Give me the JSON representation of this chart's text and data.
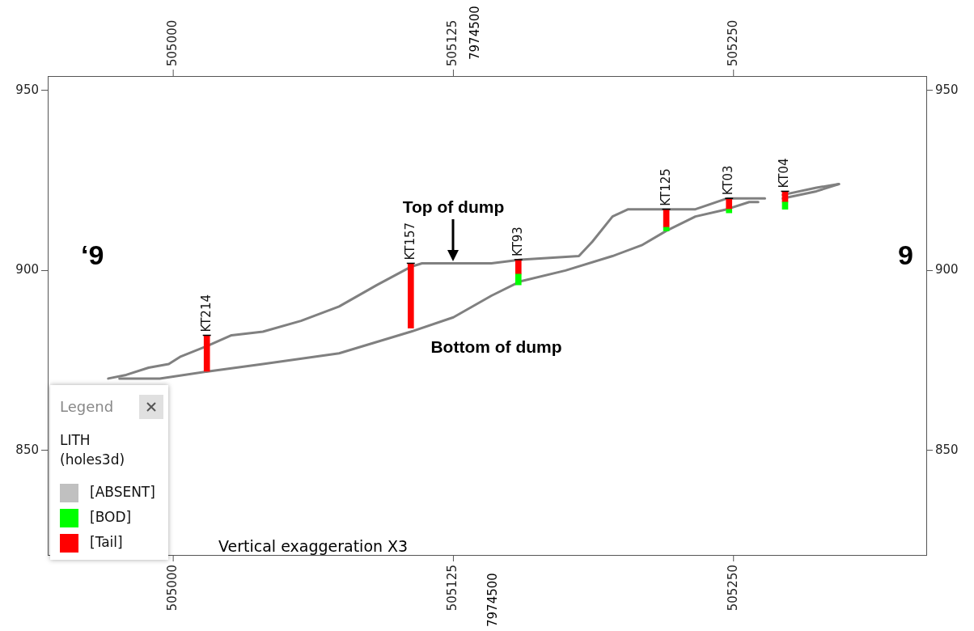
{
  "chart_data": {
    "type": "line",
    "legend_title": "LITH (holes3d)",
    "xlim": [
      504944,
      505336
    ],
    "xticks": [
      505000,
      505125,
      505250
    ],
    "x2lim": [
      504944,
      505336
    ],
    "x2ticks": [
      505000,
      505125,
      505250
    ],
    "ylim": [
      821,
      954
    ],
    "yticks": [
      850,
      900,
      950
    ],
    "y2lim": [
      821,
      954
    ],
    "y2ticks": [
      850,
      900,
      950
    ],
    "grid": false,
    "legend": "bottom left",
    "marker": "none",
    "line_style": "solid",
    "series": [
      {
        "color": "#808080",
        "x": [
          504971,
          504979,
          504989,
          504998,
          505003,
          505015,
          505026,
          505040,
          505057,
          505074,
          505091,
          505106,
          505111,
          505125,
          505142,
          505155,
          505181,
          505187,
          505196,
          505203,
          505220,
          505233,
          505247,
          505260,
          505264
        ],
        "values": [
          870,
          871,
          873,
          874,
          876,
          879,
          882,
          883,
          886,
          890,
          896,
          901,
          902,
          902,
          902,
          903,
          904,
          908,
          915,
          917,
          917,
          917,
          920,
          920,
          920
        ]
      },
      {
        "color": "#808080",
        "x": [
          504976,
          504994,
          505016,
          505040,
          505074,
          505106,
          505125,
          505142,
          505155,
          505175,
          505196,
          505209,
          505220,
          505233,
          505247,
          505257,
          505261
        ],
        "values": [
          870,
          870,
          872,
          874,
          877,
          883,
          887,
          893,
          897,
          900,
          904,
          907,
          911,
          915,
          917,
          919,
          919
        ]
      },
      {
        "color": "#808080",
        "x": [
          505272,
          505287,
          505297
        ],
        "values": [
          921,
          923,
          924
        ]
      },
      {
        "color": "#808080",
        "x": [
          505272,
          505287,
          505297
        ],
        "values": [
          920,
          922,
          924
        ]
      },
      {
        "name": "[ABSENT]",
        "type": "bar",
        "color": "#c0c0c0"
      },
      {
        "name": "[BOD]",
        "type": "bar",
        "color": "#00ff00",
        "x": [
          505154,
          505220,
          505248,
          505273
        ],
        "base": [
          896,
          911,
          916,
          917
        ],
        "values": [
          3,
          1,
          1,
          2
        ]
      },
      {
        "name": "[Tail]",
        "type": "bar",
        "color": "#ff0000",
        "x": [
          505015,
          505106,
          505154,
          505220,
          505248,
          505273
        ],
        "base": [
          872,
          884,
          899,
          912,
          917,
          919
        ],
        "values": [
          10,
          18,
          4,
          5,
          3,
          3
        ]
      }
    ],
    "annotations": [
      {
        "text": "KT214",
        "x": 505015,
        "y": 882
      },
      {
        "text": "KT157",
        "x": 505106,
        "y": 902
      },
      {
        "text": "KT93",
        "x": 505154,
        "y": 903
      },
      {
        "text": "KT125",
        "x": 505220,
        "y": 917
      },
      {
        "text": "KT03",
        "x": 505248,
        "y": 920
      },
      {
        "text": "KT04",
        "x": 505273,
        "y": 922
      },
      {
        "text": "Top of dump",
        "x": 505125,
        "y": 902
      },
      {
        "text": "Bottom of dump",
        "x": 505125,
        "y": 887
      },
      "‘9",
      "9",
      "Vertical exaggeration X3",
      "7974500",
      "7974500",
      "Legend"
    ]
  }
}
